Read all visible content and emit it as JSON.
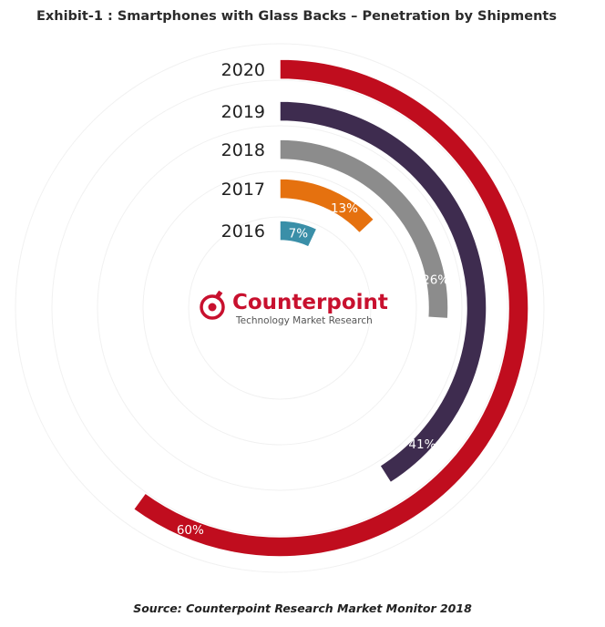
{
  "title": "Exhibit-1 : Smartphones with Glass Backs – Penetration by Shipments",
  "source": "Source: Counterpoint Research Market Monitor 2018",
  "logo": {
    "wordmark": "Counterpoint",
    "tagline": "Technology Market Research",
    "icon": "counterpoint-logo-icon",
    "color": "#c8102e"
  },
  "chart_data": {
    "type": "radial-bar",
    "title": "Exhibit-1 : Smartphones with Glass Backs – Penetration by Shipments",
    "categories": [
      "2016",
      "2017",
      "2018",
      "2019",
      "2020"
    ],
    "values": [
      7,
      13,
      26,
      41,
      60
    ],
    "value_labels": [
      "7%",
      "13%",
      "26%",
      "41%",
      "60%"
    ],
    "unit": "%",
    "max": 100,
    "colors": [
      "#3a8fa8",
      "#e5710f",
      "#8c8c8c",
      "#3e2c4f",
      "#c00d1e"
    ],
    "grid": true
  }
}
